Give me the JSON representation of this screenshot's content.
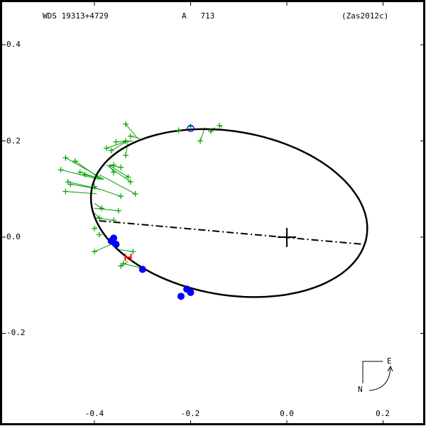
{
  "header": {
    "wds_id": "WDS 19313+4729",
    "discoverer": "A   713",
    "reference": "(Zas2012c)"
  },
  "axes": {
    "y_ticks": [
      {
        "label": "0.4",
        "value": 0.4
      },
      {
        "label": "0.2",
        "value": 0.2
      },
      {
        "label": "0.0",
        "value": 0.0
      },
      {
        "label": "-0.2",
        "value": -0.2
      }
    ],
    "x_ticks": [
      {
        "label": "-0.4",
        "value": -0.4
      },
      {
        "label": "-0.2",
        "value": -0.2
      },
      {
        "label": "0.0",
        "value": 0.0
      },
      {
        "label": "0.2",
        "value": 0.2
      }
    ]
  },
  "compass": {
    "north": "N",
    "east": "E"
  },
  "colors": {
    "orbit": "#000000",
    "micrometer": "#00a000",
    "interferometric": "#0000ff",
    "highlight": "#ff0000",
    "frame": "#000000"
  },
  "chart_data": {
    "type": "scatter",
    "title": "WDS 19313+4729  A 713  (Zas2012c)",
    "xlabel": "",
    "ylabel": "",
    "xlim": [
      -0.595,
      0.287
    ],
    "ylim": [
      -0.392,
      0.492
    ],
    "grid": false,
    "orbit_ellipse": {
      "leftmost": [
        -0.405,
        0.09
      ],
      "rightmost": [
        0.164,
        0.0
      ],
      "top": [
        -0.2,
        0.226
      ],
      "bottom": [
        -0.07,
        -0.129
      ]
    },
    "primary_star": [
      0.0,
      0.0
    ],
    "line_of_apsides": [
      [
        -0.39,
        0.034
      ],
      [
        0.16,
        -0.015
      ]
    ],
    "series": [
      {
        "name": "micrometer measures",
        "marker": "+",
        "color": "#00a000",
        "points": [
          {
            "obs": [
              -0.335,
              0.235
            ],
            "calc": [
              -0.31,
              0.205
            ]
          },
          {
            "obs": [
              -0.325,
              0.21
            ],
            "calc": [
              -0.305,
              0.205
            ]
          },
          {
            "obs": [
              -0.335,
              0.2
            ],
            "calc": [
              -0.32,
              0.2
            ]
          },
          {
            "obs": [
              -0.355,
              0.198
            ],
            "calc": [
              -0.32,
              0.2
            ]
          },
          {
            "obs": [
              -0.375,
              0.185
            ],
            "calc": [
              -0.33,
              0.2
            ]
          },
          {
            "obs": [
              -0.335,
              0.17
            ],
            "calc": [
              -0.33,
              0.2
            ]
          },
          {
            "obs": [
              -0.365,
              0.18
            ],
            "calc": [
              -0.33,
              0.2
            ]
          },
          {
            "obs": [
              -0.46,
              0.165
            ],
            "calc": [
              -0.38,
              0.12
            ]
          },
          {
            "obs": [
              -0.44,
              0.158
            ],
            "calc": [
              -0.385,
              0.12
            ]
          },
          {
            "obs": [
              -0.47,
              0.14
            ],
            "calc": [
              -0.39,
              0.12
            ]
          },
          {
            "obs": [
              -0.43,
              0.135
            ],
            "calc": [
              -0.385,
              0.12
            ]
          },
          {
            "obs": [
              -0.42,
              0.13
            ],
            "calc": [
              -0.38,
              0.12
            ]
          },
          {
            "obs": [
              -0.45,
              0.11
            ],
            "calc": [
              -0.39,
              0.1
            ]
          },
          {
            "obs": [
              -0.455,
              0.115
            ],
            "calc": [
              -0.39,
              0.1
            ]
          },
          {
            "obs": [
              -0.46,
              0.095
            ],
            "calc": [
              -0.395,
              0.09
            ]
          },
          {
            "obs": [
              -0.4,
              0.105
            ],
            "calc": [
              -0.395,
              0.1
            ]
          },
          {
            "obs": [
              -0.315,
              0.09
            ],
            "calc": [
              -0.39,
              0.13
            ]
          },
          {
            "obs": [
              -0.345,
              0.085
            ],
            "calc": [
              -0.39,
              0.1
            ]
          },
          {
            "obs": [
              -0.325,
              0.115
            ],
            "calc": [
              -0.375,
              0.15
            ]
          },
          {
            "obs": [
              -0.36,
              0.135
            ],
            "calc": [
              -0.37,
              0.15
            ]
          },
          {
            "obs": [
              -0.345,
              0.145
            ],
            "calc": [
              -0.37,
              0.15
            ]
          },
          {
            "obs": [
              -0.36,
              0.15
            ],
            "calc": [
              -0.37,
              0.15
            ]
          },
          {
            "obs": [
              -0.33,
              0.125
            ],
            "calc": [
              -0.37,
              0.15
            ]
          },
          {
            "obs": [
              -0.385,
              0.06
            ],
            "calc": [
              -0.4,
              0.07
            ]
          },
          {
            "obs": [
              -0.35,
              0.055
            ],
            "calc": [
              -0.4,
              0.06
            ]
          },
          {
            "obs": [
              -0.39,
              0.04
            ],
            "calc": [
              -0.4,
              0.05
            ]
          },
          {
            "obs": [
              -0.36,
              0.035
            ],
            "calc": [
              -0.4,
              0.04
            ]
          },
          {
            "obs": [
              -0.4,
              0.018
            ],
            "calc": [
              -0.395,
              0.02
            ]
          },
          {
            "obs": [
              -0.39,
              0.005
            ],
            "calc": [
              -0.385,
              0.005
            ]
          },
          {
            "obs": [
              -0.4,
              -0.03
            ],
            "calc": [
              -0.365,
              -0.015
            ]
          },
          {
            "obs": [
              -0.32,
              -0.03
            ],
            "calc": [
              -0.355,
              -0.025
            ]
          },
          {
            "obs": [
              -0.345,
              -0.06
            ],
            "calc": [
              -0.33,
              -0.05
            ]
          },
          {
            "obs": [
              -0.34,
              -0.055
            ],
            "calc": [
              -0.3,
              -0.065
            ]
          },
          {
            "obs": [
              -0.225,
              0.222
            ],
            "calc": [
              -0.22,
              0.222
            ]
          },
          {
            "obs": [
              -0.2,
              0.23
            ],
            "calc": [
              -0.2,
              0.228
            ]
          },
          {
            "obs": [
              -0.18,
              0.2
            ],
            "calc": [
              -0.17,
              0.228
            ]
          },
          {
            "obs": [
              -0.158,
              0.22
            ],
            "calc": [
              -0.15,
              0.228
            ]
          },
          {
            "obs": [
              -0.14,
              0.232
            ],
            "calc": [
              -0.135,
              0.228
            ]
          }
        ]
      },
      {
        "name": "interferometric measures",
        "marker": "filled-circle",
        "color": "#0000ff",
        "points": [
          [
            -0.365,
            -0.008
          ],
          [
            -0.36,
            -0.002
          ],
          [
            -0.355,
            -0.015
          ],
          [
            -0.3,
            -0.067
          ],
          [
            -0.208,
            -0.108
          ],
          [
            -0.2,
            -0.115
          ],
          [
            -0.22,
            -0.123
          ]
        ]
      },
      {
        "name": "periastron / epoch marker",
        "marker": "open-circle",
        "color": "#0000ff",
        "points": [
          [
            -0.2,
            0.226
          ]
        ]
      },
      {
        "name": "highlighted measure",
        "marker": "H",
        "color": "#ff0000",
        "points": [
          [
            -0.33,
            -0.042
          ]
        ]
      }
    ]
  }
}
